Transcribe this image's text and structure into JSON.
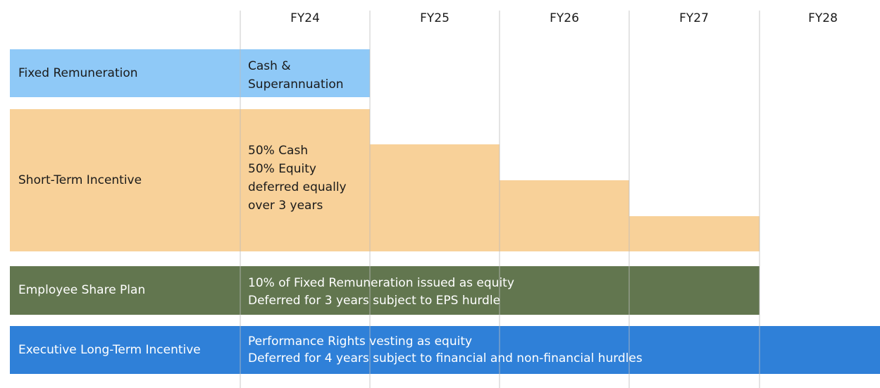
{
  "columns": [
    "FY24",
    "FY25",
    "FY26",
    "FY27",
    "FY28"
  ],
  "rows": [
    {
      "label": "Fixed Remuneration",
      "description": [
        "Cash &",
        "Superannuation"
      ]
    },
    {
      "label": "Short-Term Incentive",
      "description": [
        "50% Cash",
        "50% Equity",
        "deferred equally",
        "over 3 years"
      ]
    },
    {
      "label": "Employee Share Plan",
      "description": [
        "10% of Fixed Remuneration issued as equity",
        "Deferred for 3 years subject to EPS hurdle"
      ]
    },
    {
      "label": "Executive Long-Term Incentive",
      "description": [
        "Performance Rights vesting as equity",
        "Deferred for 4 years subject to financial and non-financial hurdles"
      ]
    }
  ]
}
